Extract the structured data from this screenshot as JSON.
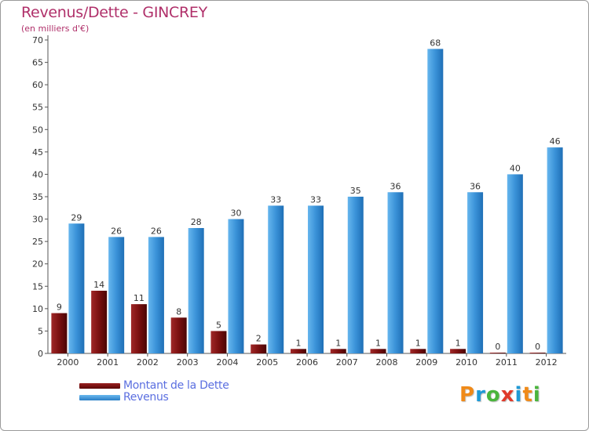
{
  "chart_data": {
    "type": "bar",
    "title": "Revenus/Dette - GINCREY",
    "subtitle": "(en milliers d'€)",
    "categories": [
      "2000",
      "2001",
      "2002",
      "2003",
      "2004",
      "2005",
      "2006",
      "2007",
      "2008",
      "2009",
      "2010",
      "2011",
      "2012"
    ],
    "series": [
      {
        "name": "Montant de la Dette",
        "color": "#7a1010",
        "values": [
          9,
          14,
          11,
          8,
          5,
          2,
          1,
          1,
          1,
          1,
          1,
          0,
          0
        ]
      },
      {
        "name": "Revenus",
        "color": "#3a92d8",
        "values": [
          29,
          26,
          26,
          28,
          30,
          33,
          33,
          35,
          36,
          68,
          36,
          40,
          46
        ]
      }
    ],
    "ylim": [
      0,
      70
    ],
    "yticks": [
      0,
      5,
      10,
      15,
      20,
      25,
      30,
      35,
      40,
      45,
      50,
      55,
      60,
      65,
      70
    ],
    "grid": false,
    "legend_position": "bottom-left"
  },
  "logo": {
    "letters": [
      "P",
      "r",
      "o",
      "x",
      "i",
      "t",
      "i"
    ],
    "colors": [
      "#f08a18",
      "#1f9ad6",
      "#4ab53c",
      "#e03a2a",
      "#1f9ad6",
      "#f08a18",
      "#4ab53c"
    ]
  }
}
